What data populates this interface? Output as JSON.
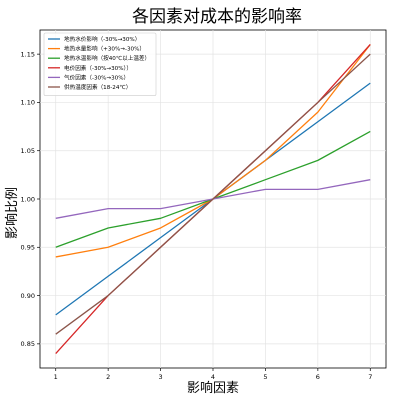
{
  "chart_data": {
    "type": "line",
    "title": "各因素对成本的影响率",
    "xlabel": "影响因素",
    "ylabel": "影响比例",
    "x": [
      1,
      2,
      3,
      4,
      5,
      6,
      7
    ],
    "xlim": [
      0.7,
      7.3
    ],
    "ylim": [
      0.825,
      1.175
    ],
    "yticks": [
      0.85,
      0.9,
      0.95,
      1.0,
      1.05,
      1.1,
      1.15
    ],
    "ytick_labels": [
      "0.85",
      "0.90",
      "0.95",
      "1.00",
      "1.05",
      "1.10",
      "1.15"
    ],
    "xtick_labels": [
      "1",
      "2",
      "3",
      "4",
      "5",
      "6",
      "7"
    ],
    "grid": true,
    "legend_position": "top-left",
    "series": [
      {
        "name": "地热水价影响（-30%→30%）",
        "color": "#1f77b4",
        "values": [
          0.88,
          0.92,
          0.96,
          1.0,
          1.04,
          1.08,
          1.12
        ]
      },
      {
        "name": "地热水量影响（+30%→-30%）",
        "color": "#ff7f0e",
        "values": [
          0.94,
          0.95,
          0.97,
          1.0,
          1.04,
          1.09,
          1.16
        ]
      },
      {
        "name": "地热水温影响（按40℃以上温差）",
        "color": "#2ca02c",
        "values": [
          0.95,
          0.97,
          0.98,
          1.0,
          1.02,
          1.04,
          1.07
        ]
      },
      {
        "name": "电价因素（-30%→30%））",
        "color": "#d62728",
        "values": [
          0.84,
          0.9,
          0.95,
          1.0,
          1.05,
          1.1,
          1.16
        ]
      },
      {
        "name": "气价因素（-30%→30%）",
        "color": "#9467bd",
        "values": [
          0.98,
          0.99,
          0.99,
          1.0,
          1.01,
          1.01,
          1.02
        ]
      },
      {
        "name": "供热温度因素（18-24℃）",
        "color": "#8c564b",
        "values": [
          0.86,
          0.9,
          0.95,
          1.0,
          1.05,
          1.1,
          1.15
        ]
      }
    ]
  }
}
